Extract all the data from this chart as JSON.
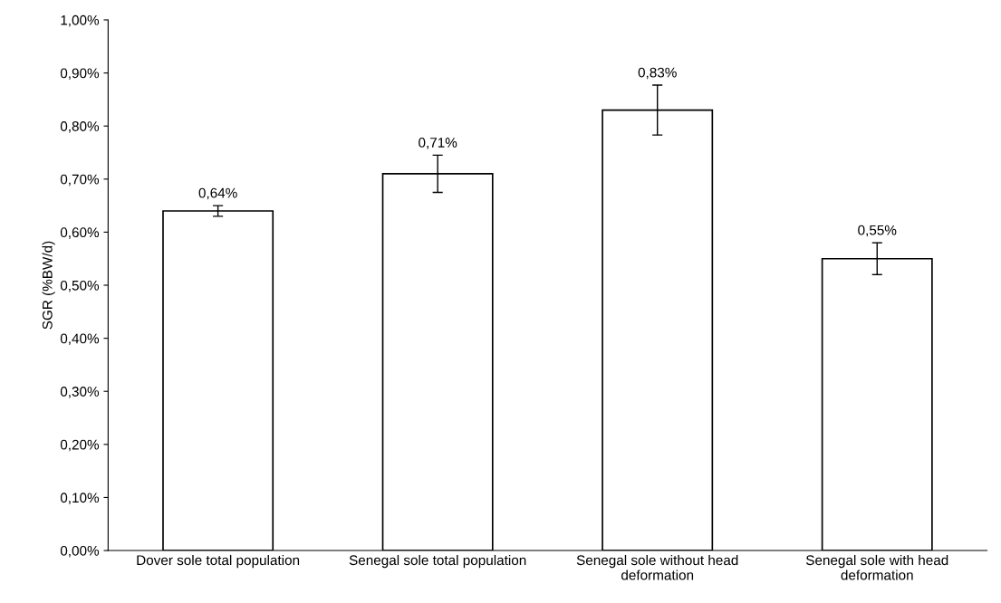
{
  "chart_data": {
    "type": "bar",
    "ylabel": "SGR (%BW/d)",
    "categories": [
      "Dover sole total population",
      "Senegal sole total population",
      "Senegal sole without head\ndeformation",
      "Senegal sole with head\ndeformation"
    ],
    "values": [
      0.64,
      0.71,
      0.83,
      0.55
    ],
    "errors": [
      0.01,
      0.035,
      0.047,
      0.03
    ],
    "value_labels": [
      "0,64%",
      "0,71%",
      "0,83%",
      "0,55%"
    ],
    "color": "#ffffff",
    "ylim": [
      0,
      1
    ],
    "yticks": [
      {
        "value": 0,
        "label": "0,00%"
      },
      {
        "value": 0.1,
        "label": "0,10%"
      },
      {
        "value": 0.2,
        "label": "0,20%"
      },
      {
        "value": 0.3,
        "label": "0,30%"
      },
      {
        "value": 0.4,
        "label": "0,40%"
      },
      {
        "value": 0.5,
        "label": "0,50%"
      },
      {
        "value": 0.6,
        "label": "0,60%"
      },
      {
        "value": 0.7,
        "label": "0,70%"
      },
      {
        "value": 0.8,
        "label": "0,80%"
      },
      {
        "value": 0.9,
        "label": "0,90%"
      },
      {
        "value": 1,
        "label": "1,00%"
      }
    ],
    "grid": false,
    "legend": false
  }
}
